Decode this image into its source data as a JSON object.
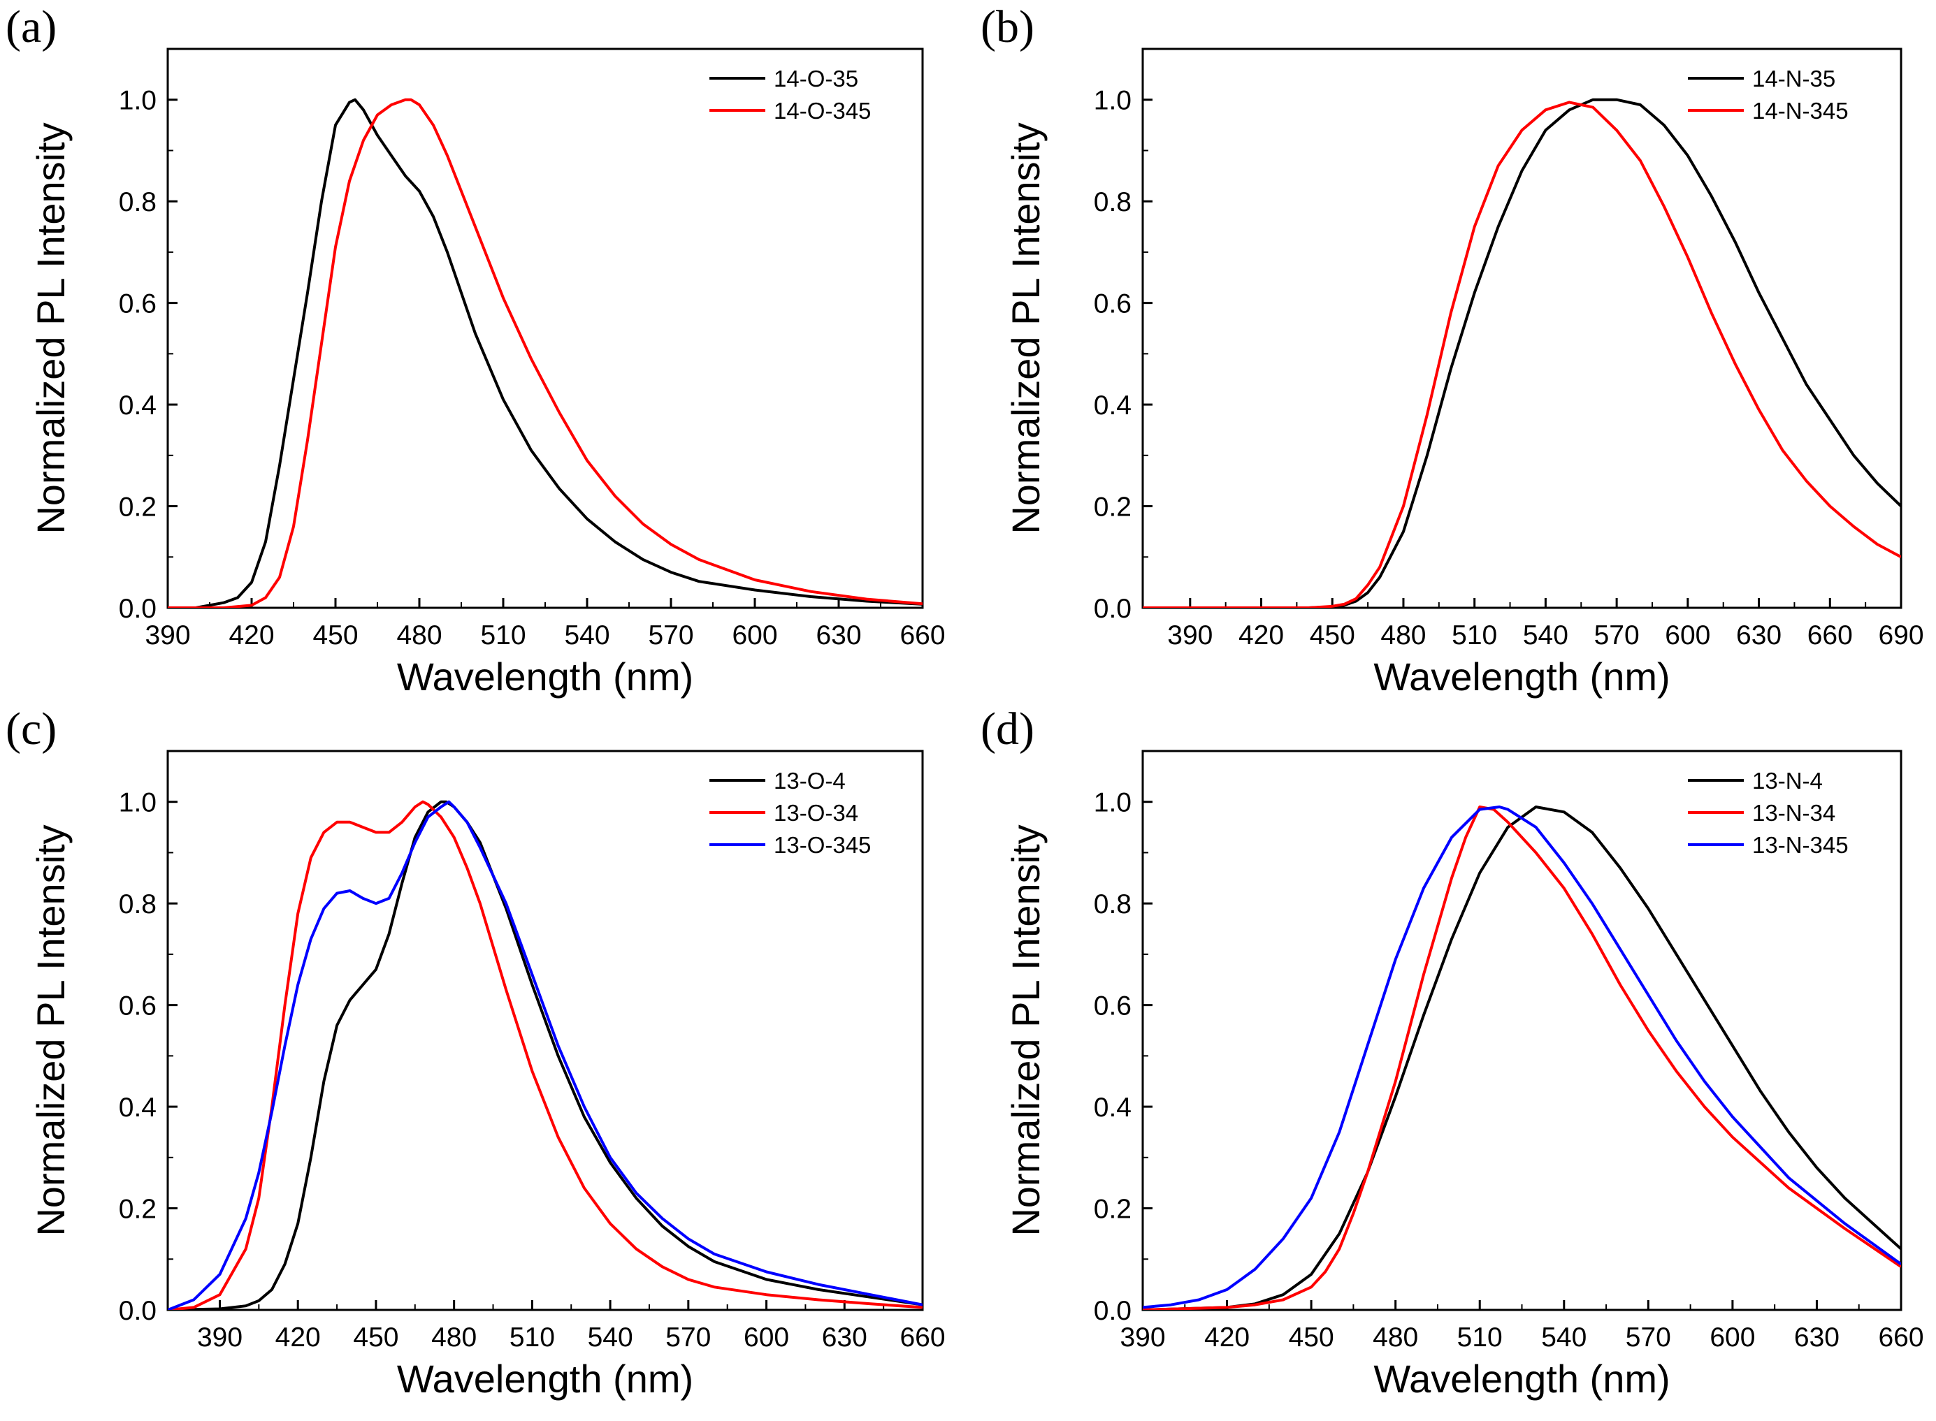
{
  "chart_data": [
    {
      "type": "line",
      "panel_label": "(a)",
      "xlabel": "Wavelength (nm)",
      "ylabel": "Normalized PL Intensity",
      "xlim": [
        390,
        660
      ],
      "ylim": [
        0,
        1.1
      ],
      "xticks": [
        390,
        420,
        450,
        480,
        510,
        540,
        570,
        600,
        630,
        660
      ],
      "yticks": [
        0.0,
        0.2,
        0.4,
        0.6,
        0.8,
        1.0
      ],
      "ytick_labels": [
        "0.0",
        "0.2",
        "0.4",
        "0.6",
        "0.8",
        "1.0"
      ],
      "legend_position": "top-right",
      "series": [
        {
          "name": "14-O-35",
          "color": "#000000",
          "x": [
            390,
            400,
            410,
            415,
            420,
            425,
            430,
            435,
            440,
            445,
            450,
            455,
            457,
            460,
            465,
            470,
            475,
            480,
            485,
            490,
            495,
            500,
            510,
            520,
            530,
            540,
            550,
            560,
            570,
            580,
            600,
            620,
            640,
            660
          ],
          "y": [
            0.0,
            0.0,
            0.01,
            0.02,
            0.05,
            0.13,
            0.28,
            0.45,
            0.62,
            0.8,
            0.95,
            0.995,
            1.0,
            0.98,
            0.93,
            0.89,
            0.85,
            0.82,
            0.77,
            0.7,
            0.62,
            0.54,
            0.41,
            0.31,
            0.235,
            0.175,
            0.13,
            0.095,
            0.07,
            0.052,
            0.035,
            0.022,
            0.013,
            0.007
          ]
        },
        {
          "name": "14-O-345",
          "color": "#ff0000",
          "x": [
            390,
            410,
            420,
            425,
            430,
            435,
            440,
            445,
            450,
            455,
            460,
            465,
            470,
            475,
            477,
            480,
            485,
            490,
            500,
            510,
            520,
            530,
            540,
            550,
            560,
            570,
            580,
            600,
            620,
            640,
            660
          ],
          "y": [
            0.0,
            0.0,
            0.005,
            0.02,
            0.06,
            0.16,
            0.33,
            0.52,
            0.71,
            0.84,
            0.92,
            0.97,
            0.99,
            1.0,
            1.0,
            0.99,
            0.95,
            0.89,
            0.75,
            0.61,
            0.49,
            0.385,
            0.29,
            0.22,
            0.165,
            0.125,
            0.095,
            0.055,
            0.032,
            0.017,
            0.008
          ]
        }
      ]
    },
    {
      "type": "line",
      "panel_label": "(b)",
      "xlabel": "Wavelength (nm)",
      "ylabel": "Normalized PL Intensity",
      "xlim": [
        370,
        690
      ],
      "ylim": [
        0,
        1.1
      ],
      "xticks": [
        390,
        420,
        450,
        480,
        510,
        540,
        570,
        600,
        630,
        660,
        690
      ],
      "yticks": [
        0.0,
        0.2,
        0.4,
        0.6,
        0.8,
        1.0
      ],
      "ytick_labels": [
        "0.0",
        "0.2",
        "0.4",
        "0.6",
        "0.8",
        "1.0"
      ],
      "legend_position": "top-right",
      "series": [
        {
          "name": "14-N-35",
          "color": "#000000",
          "x": [
            370,
            440,
            450,
            455,
            460,
            465,
            470,
            480,
            490,
            500,
            510,
            520,
            530,
            540,
            550,
            560,
            570,
            580,
            590,
            600,
            610,
            620,
            630,
            640,
            650,
            660,
            670,
            680,
            690
          ],
          "y": [
            0.0,
            0.0,
            0.002,
            0.005,
            0.013,
            0.03,
            0.06,
            0.15,
            0.3,
            0.47,
            0.62,
            0.75,
            0.86,
            0.94,
            0.98,
            1.0,
            1.0,
            0.99,
            0.95,
            0.89,
            0.81,
            0.72,
            0.62,
            0.53,
            0.44,
            0.37,
            0.3,
            0.245,
            0.2
          ]
        },
        {
          "name": "14-N-345",
          "color": "#ff0000",
          "x": [
            370,
            440,
            450,
            455,
            460,
            465,
            470,
            480,
            490,
            500,
            510,
            520,
            530,
            540,
            550,
            560,
            570,
            580,
            590,
            600,
            610,
            620,
            630,
            640,
            650,
            660,
            670,
            680,
            690
          ],
          "y": [
            0.0,
            0.0,
            0.003,
            0.007,
            0.018,
            0.045,
            0.08,
            0.2,
            0.38,
            0.58,
            0.75,
            0.87,
            0.94,
            0.98,
            0.995,
            0.985,
            0.94,
            0.88,
            0.79,
            0.69,
            0.58,
            0.48,
            0.39,
            0.31,
            0.25,
            0.2,
            0.16,
            0.125,
            0.1
          ]
        }
      ]
    },
    {
      "type": "line",
      "panel_label": "(c)",
      "xlabel": "Wavelength (nm)",
      "ylabel": "Normalized PL Intensity",
      "xlim": [
        370,
        660
      ],
      "ylim": [
        0,
        1.1
      ],
      "xticks": [
        390,
        420,
        450,
        480,
        510,
        540,
        570,
        600,
        630,
        660
      ],
      "yticks": [
        0.0,
        0.2,
        0.4,
        0.6,
        0.8,
        1.0
      ],
      "ytick_labels": [
        "0.0",
        "0.2",
        "0.4",
        "0.6",
        "0.8",
        "1.0"
      ],
      "legend_position": "top-right",
      "series": [
        {
          "name": "13-O-4",
          "color": "#000000",
          "x": [
            370,
            390,
            400,
            405,
            410,
            415,
            420,
            425,
            430,
            435,
            440,
            445,
            450,
            455,
            460,
            465,
            470,
            475,
            477,
            480,
            485,
            490,
            500,
            510,
            520,
            530,
            540,
            550,
            560,
            570,
            580,
            600,
            620,
            640,
            660
          ],
          "y": [
            0.0,
            0.002,
            0.008,
            0.018,
            0.04,
            0.09,
            0.17,
            0.3,
            0.45,
            0.56,
            0.61,
            0.64,
            0.67,
            0.74,
            0.84,
            0.93,
            0.98,
            1.0,
            1.0,
            0.99,
            0.96,
            0.92,
            0.79,
            0.64,
            0.5,
            0.38,
            0.29,
            0.22,
            0.165,
            0.125,
            0.095,
            0.06,
            0.04,
            0.025,
            0.01
          ]
        },
        {
          "name": "13-O-34",
          "color": "#ff0000",
          "x": [
            370,
            380,
            390,
            400,
            405,
            410,
            415,
            420,
            425,
            430,
            435,
            440,
            445,
            450,
            455,
            460,
            465,
            468,
            470,
            475,
            480,
            485,
            490,
            500,
            510,
            520,
            530,
            540,
            550,
            560,
            570,
            580,
            600,
            620,
            640,
            660
          ],
          "y": [
            0.0,
            0.005,
            0.03,
            0.12,
            0.22,
            0.4,
            0.6,
            0.78,
            0.89,
            0.94,
            0.96,
            0.96,
            0.95,
            0.94,
            0.94,
            0.96,
            0.99,
            1.0,
            0.995,
            0.97,
            0.93,
            0.87,
            0.8,
            0.63,
            0.47,
            0.34,
            0.24,
            0.17,
            0.12,
            0.085,
            0.06,
            0.045,
            0.03,
            0.02,
            0.012,
            0.005
          ]
        },
        {
          "name": "13-O-345",
          "color": "#0000ff",
          "x": [
            370,
            380,
            390,
            400,
            405,
            410,
            415,
            420,
            425,
            430,
            435,
            440,
            445,
            450,
            455,
            460,
            465,
            470,
            475,
            478,
            480,
            485,
            490,
            500,
            510,
            520,
            530,
            540,
            550,
            560,
            570,
            580,
            600,
            620,
            640,
            660
          ],
          "y": [
            0.0,
            0.02,
            0.07,
            0.18,
            0.27,
            0.39,
            0.52,
            0.64,
            0.73,
            0.79,
            0.82,
            0.825,
            0.81,
            0.8,
            0.81,
            0.86,
            0.92,
            0.97,
            0.99,
            1.0,
            0.99,
            0.96,
            0.91,
            0.8,
            0.66,
            0.52,
            0.4,
            0.3,
            0.23,
            0.18,
            0.14,
            0.11,
            0.075,
            0.05,
            0.03,
            0.01
          ]
        }
      ]
    },
    {
      "type": "line",
      "panel_label": "(d)",
      "xlabel": "Wavelength (nm)",
      "ylabel": "Normalized PL Intensity",
      "xlim": [
        390,
        660
      ],
      "ylim": [
        0,
        1.1
      ],
      "xticks": [
        390,
        420,
        450,
        480,
        510,
        540,
        570,
        600,
        630,
        660
      ],
      "yticks": [
        0.0,
        0.2,
        0.4,
        0.6,
        0.8,
        1.0
      ],
      "ytick_labels": [
        "0.0",
        "0.2",
        "0.4",
        "0.6",
        "0.8",
        "1.0"
      ],
      "legend_position": "top-right",
      "series": [
        {
          "name": "13-N-4",
          "color": "#000000",
          "x": [
            390,
            420,
            430,
            440,
            450,
            460,
            470,
            480,
            490,
            500,
            510,
            520,
            530,
            540,
            550,
            560,
            570,
            580,
            590,
            600,
            610,
            620,
            630,
            640,
            650,
            660
          ],
          "y": [
            0.0,
            0.005,
            0.012,
            0.03,
            0.07,
            0.15,
            0.27,
            0.42,
            0.58,
            0.73,
            0.86,
            0.95,
            0.99,
            0.98,
            0.94,
            0.87,
            0.79,
            0.7,
            0.61,
            0.52,
            0.43,
            0.35,
            0.28,
            0.22,
            0.17,
            0.12
          ]
        },
        {
          "name": "13-N-34",
          "color": "#ff0000",
          "x": [
            390,
            420,
            430,
            440,
            450,
            455,
            460,
            465,
            470,
            480,
            490,
            500,
            505,
            510,
            515,
            520,
            530,
            540,
            550,
            560,
            570,
            580,
            590,
            600,
            620,
            640,
            660
          ],
          "y": [
            0.0,
            0.005,
            0.01,
            0.02,
            0.045,
            0.075,
            0.12,
            0.19,
            0.27,
            0.45,
            0.66,
            0.85,
            0.93,
            0.99,
            0.985,
            0.96,
            0.9,
            0.83,
            0.74,
            0.64,
            0.55,
            0.47,
            0.4,
            0.34,
            0.24,
            0.16,
            0.085
          ]
        },
        {
          "name": "13-N-345",
          "color": "#0000ff",
          "x": [
            390,
            400,
            410,
            420,
            430,
            440,
            450,
            460,
            470,
            480,
            490,
            500,
            510,
            517,
            520,
            530,
            540,
            550,
            560,
            570,
            580,
            590,
            600,
            620,
            640,
            660
          ],
          "y": [
            0.005,
            0.01,
            0.02,
            0.04,
            0.08,
            0.14,
            0.22,
            0.35,
            0.52,
            0.69,
            0.83,
            0.93,
            0.985,
            0.99,
            0.985,
            0.95,
            0.88,
            0.8,
            0.71,
            0.62,
            0.53,
            0.45,
            0.38,
            0.26,
            0.17,
            0.09
          ]
        }
      ]
    }
  ]
}
